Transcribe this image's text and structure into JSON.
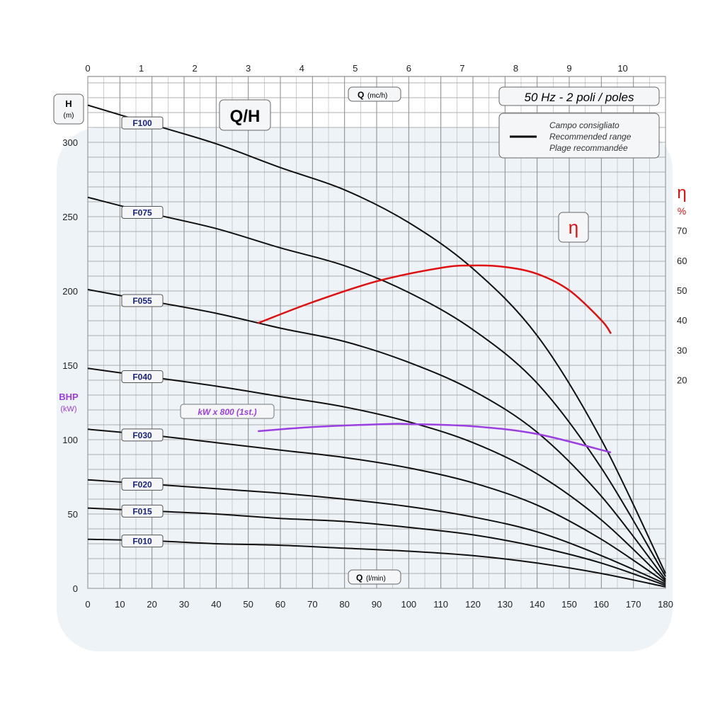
{
  "chart_data": {
    "type": "line",
    "title": "Q/H",
    "frequency_label": "50 Hz - 2 poli / poles",
    "legend": {
      "lines": [
        "Campo consigliato",
        "Recommended range",
        "Plage recommandée"
      ],
      "placement": "top-right"
    },
    "x_bottom": {
      "label": "Q",
      "unit": "(l/min)",
      "range": [
        0,
        180
      ],
      "ticks": [
        0,
        10,
        20,
        30,
        40,
        50,
        60,
        70,
        80,
        90,
        100,
        110,
        120,
        130,
        140,
        150,
        160,
        170,
        180
      ]
    },
    "x_top": {
      "label": "Q",
      "unit": "(mc/h)",
      "ticks": [
        0,
        1,
        2,
        3,
        4,
        5,
        6,
        7,
        8,
        9,
        10
      ]
    },
    "y_left": {
      "label": "H",
      "unit": "(m)",
      "ticks": [
        0,
        50,
        100,
        150,
        200,
        250,
        300
      ],
      "range": [
        0,
        344
      ]
    },
    "y_left_secondary_label": {
      "label": "BHP",
      "unit": "(kW)"
    },
    "y_right": {
      "label": "η",
      "unit": "%",
      "ticks": [
        20,
        30,
        40,
        50,
        60,
        70
      ]
    },
    "grid": true,
    "x": [
      0,
      20,
      40,
      60,
      80,
      100,
      120,
      140,
      160,
      180
    ],
    "series": [
      {
        "name": "F100",
        "values": [
          325,
          312,
          299,
          283,
          268,
          246,
          215,
          170,
          100,
          10
        ]
      },
      {
        "name": "F075",
        "values": [
          263,
          252,
          242,
          229,
          217,
          199,
          174,
          138,
          81,
          8
        ]
      },
      {
        "name": "F055",
        "values": [
          201,
          193,
          185,
          175,
          166,
          152,
          133,
          105,
          62,
          6
        ]
      },
      {
        "name": "F040",
        "values": [
          148,
          142,
          136,
          129,
          122,
          112,
          98,
          77,
          46,
          5
        ]
      },
      {
        "name": "F030",
        "values": [
          107,
          103,
          98,
          93,
          88,
          81,
          71,
          56,
          33,
          4
        ]
      },
      {
        "name": "F020",
        "values": [
          73,
          70,
          67,
          64,
          60,
          55,
          48,
          38,
          22,
          3
        ]
      },
      {
        "name": "F015",
        "values": [
          54,
          52,
          50,
          47,
          45,
          41,
          36,
          28,
          17,
          2
        ]
      },
      {
        "name": "F010",
        "values": [
          33,
          32,
          30,
          29,
          27,
          25,
          22,
          17,
          10,
          1
        ]
      }
    ],
    "efficiency": {
      "label": "η",
      "color": "#e01010",
      "x": [
        53,
        70,
        90,
        110,
        120,
        130,
        140,
        150,
        160,
        163
      ],
      "values": [
        39,
        46,
        53,
        57.5,
        58.3,
        57.8,
        55.5,
        50,
        40,
        35.5
      ]
    },
    "power": {
      "label": "kW x 800 (1st.)",
      "color": "#9b3fe0",
      "x": [
        53,
        70,
        93,
        100,
        120,
        140,
        163
      ],
      "values": [
        105.7,
        108.5,
        110.5,
        110.5,
        109,
        103.8,
        91.4
      ]
    }
  }
}
